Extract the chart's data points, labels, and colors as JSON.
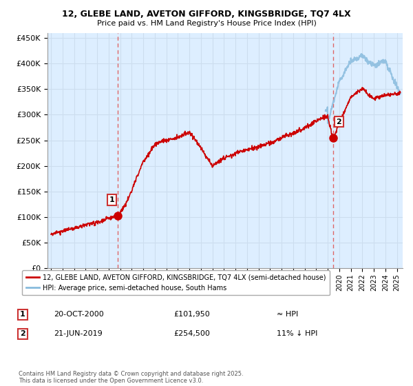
{
  "title1": "12, GLEBE LAND, AVETON GIFFORD, KINGSBRIDGE, TQ7 4LX",
  "title2": "Price paid vs. HM Land Registry's House Price Index (HPI)",
  "ytick_vals": [
    0,
    50000,
    100000,
    150000,
    200000,
    250000,
    300000,
    350000,
    400000,
    450000
  ],
  "ylim": [
    0,
    460000
  ],
  "xlim_start": 1994.7,
  "xlim_end": 2025.5,
  "sale1_x": 2000.8,
  "sale1_y": 101950,
  "sale1_label": "1",
  "sale2_x": 2019.47,
  "sale2_y": 254500,
  "sale2_label": "2",
  "red_line_color": "#cc0000",
  "blue_line_color": "#88bbdd",
  "vline_color": "#dd6666",
  "plot_bg_color": "#ddeeff",
  "legend_label1": "12, GLEBE LAND, AVETON GIFFORD, KINGSBRIDGE, TQ7 4LX (semi-detached house)",
  "legend_label2": "HPI: Average price, semi-detached house, South Hams",
  "annotation1_date": "20-OCT-2000",
  "annotation1_price": "£101,950",
  "annotation1_hpi": "≈ HPI",
  "annotation2_date": "21-JUN-2019",
  "annotation2_price": "£254,500",
  "annotation2_hpi": "11% ↓ HPI",
  "footer": "Contains HM Land Registry data © Crown copyright and database right 2025.\nThis data is licensed under the Open Government Licence v3.0.",
  "bg_color": "#ffffff",
  "grid_color": "#ccddee"
}
